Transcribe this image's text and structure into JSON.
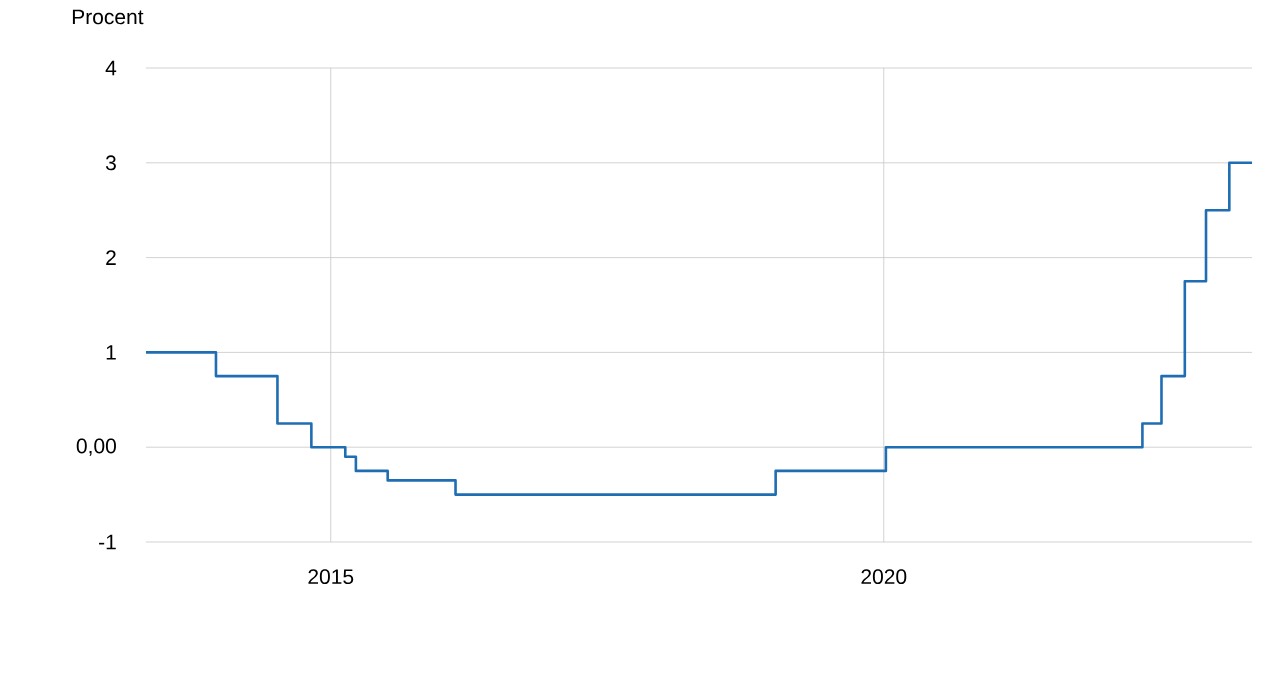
{
  "chart_data": {
    "type": "step",
    "ylabel": "Procent",
    "x": [
      "2013-05-01",
      "2013-12-18",
      "2014-07-09",
      "2014-10-29",
      "2015-02-18",
      "2015-03-25",
      "2015-07-08",
      "2016-02-17",
      "2019-01-09",
      "2020-01-08",
      "2022-05-04",
      "2022-07-06",
      "2022-09-21",
      "2022-11-30",
      "2023-02-15",
      "2023-05-01"
    ],
    "series": [
      {
        "color": "#1f6db3",
        "values": [
          1.0,
          0.75,
          0.25,
          0.0,
          -0.1,
          -0.25,
          -0.35,
          -0.5,
          -0.25,
          0.0,
          0.25,
          0.75,
          1.75,
          2.5,
          3.0,
          3.0
        ]
      }
    ],
    "xlim": [
      "2013-05-01",
      "2023-05-01"
    ],
    "xticks": [
      {
        "value": "2015-01-01",
        "label": "2015"
      },
      {
        "value": "2020-01-01",
        "label": "2020"
      }
    ],
    "ylim": [
      -1,
      4
    ],
    "yticks": [
      -1,
      {
        "value": 0,
        "label": "0,00"
      },
      1,
      2,
      3,
      4
    ],
    "grid": true,
    "line_style": "solid",
    "marker": "none"
  }
}
